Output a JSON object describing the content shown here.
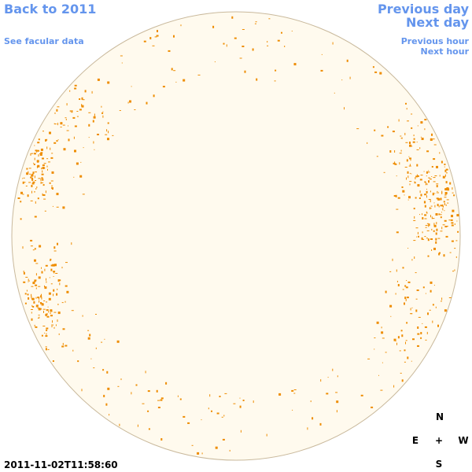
{
  "nav": {
    "back": "Back to 2011",
    "see_facular": "See facular data",
    "previous_day": "Previous day",
    "next_day": "Next day",
    "previous_hour": "Previous hour",
    "next_hour": "Next hour"
  },
  "timestamp": "2011-11-02T11:58:60",
  "compass": {
    "north": "N",
    "east": "E",
    "center": "+",
    "west": "W",
    "south": "S"
  }
}
